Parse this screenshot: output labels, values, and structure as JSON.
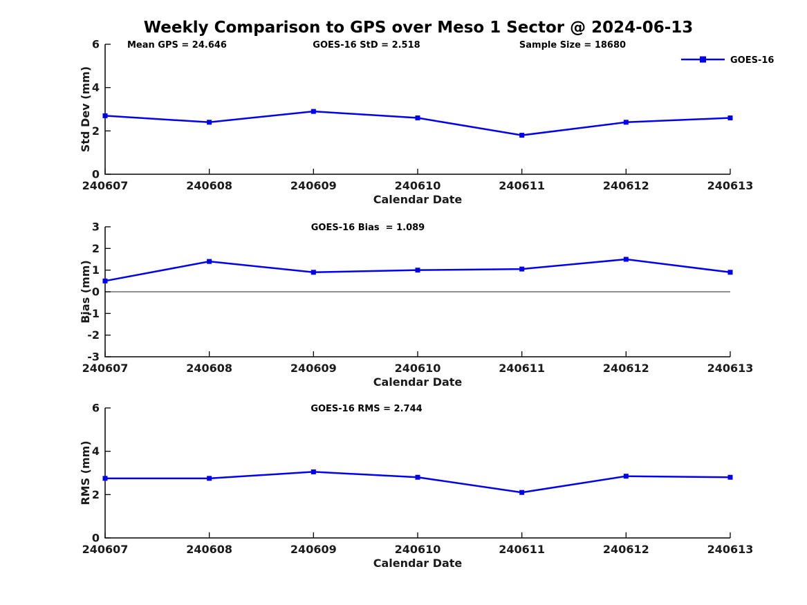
{
  "title": "Weekly Comparison to GPS over Meso 1 Sector @ 2024-06-13",
  "legend": {
    "label": "GOES-16",
    "position": "top-right"
  },
  "colors": {
    "line": "#0000EE",
    "axis": "#000000",
    "text": "#1a1a1a",
    "zero_line": "#4a4a4a",
    "background": "#ffffff"
  },
  "stats": {
    "mean_gps": 24.646,
    "goes16_std": 2.518,
    "sample_size": 18680,
    "goes16_bias": 1.089,
    "goes16_rms": 2.744
  },
  "chart_data": [
    {
      "type": "line",
      "name": "std-dev",
      "categories": [
        "240607",
        "240608",
        "240609",
        "240610",
        "240611",
        "240612",
        "240613"
      ],
      "series": [
        {
          "name": "GOES-16",
          "values": [
            2.7,
            2.4,
            2.9,
            2.6,
            1.8,
            2.4,
            2.6
          ]
        }
      ],
      "xlabel": "Calendar Date",
      "ylabel": "Std Dev (mm)",
      "ylim": [
        0,
        6
      ],
      "yticks": [
        0,
        2,
        4,
        6
      ],
      "grid": false,
      "legend_position": "top-right",
      "annotations": [
        "Mean GPS = 24.646",
        "GOES-16 StD = 2.518",
        "Sample Size = 18680"
      ]
    },
    {
      "type": "line",
      "name": "bias",
      "categories": [
        "240607",
        "240608",
        "240609",
        "240610",
        "240611",
        "240612",
        "240613"
      ],
      "series": [
        {
          "name": "GOES-16",
          "values": [
            0.5,
            1.4,
            0.9,
            1.0,
            1.05,
            1.5,
            0.9
          ]
        }
      ],
      "xlabel": "Calendar Date",
      "ylabel": "Bias (mm)",
      "ylim": [
        -3,
        3
      ],
      "yticks": [
        -3,
        -2,
        -1,
        0,
        1,
        2,
        3
      ],
      "zero_line": true,
      "grid": false,
      "annotations": [
        "GOES-16 Bias  = 1.089"
      ]
    },
    {
      "type": "line",
      "name": "rms",
      "categories": [
        "240607",
        "240608",
        "240609",
        "240610",
        "240611",
        "240612",
        "240613"
      ],
      "series": [
        {
          "name": "GOES-16",
          "values": [
            2.75,
            2.75,
            3.05,
            2.8,
            2.1,
            2.85,
            2.8
          ]
        }
      ],
      "xlabel": "Calendar Date",
      "ylabel": "RMS (mm)",
      "ylim": [
        0,
        6
      ],
      "yticks": [
        0,
        2,
        4,
        6
      ],
      "grid": false,
      "annotations": [
        "GOES-16 RMS = 2.744"
      ]
    }
  ]
}
